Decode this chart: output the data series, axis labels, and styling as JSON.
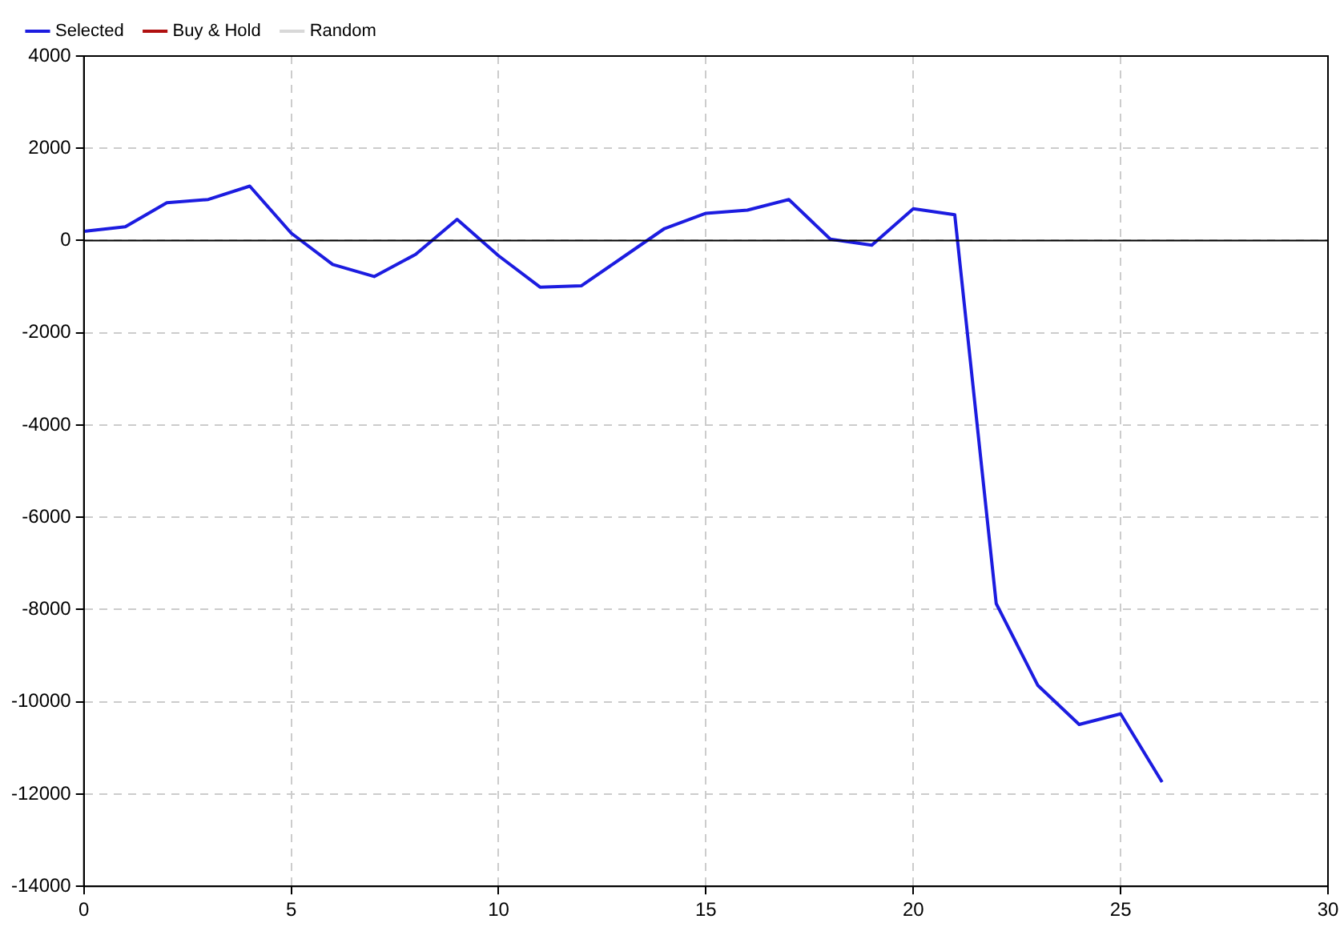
{
  "chart_data": {
    "type": "line",
    "x": [
      0,
      1,
      2,
      3,
      4,
      5,
      6,
      7,
      8,
      9,
      10,
      11,
      12,
      13,
      14,
      15,
      16,
      17,
      18,
      19,
      20,
      21,
      22,
      23,
      24,
      25,
      26
    ],
    "series": [
      {
        "name": "Selected",
        "color": "#1c1ce0",
        "values": [
          200,
          300,
          820,
          890,
          1180,
          160,
          -520,
          -780,
          -300,
          460,
          -330,
          -1010,
          -980,
          -360,
          260,
          590,
          660,
          890,
          30,
          -100,
          690,
          560,
          -7870,
          -9640,
          -10490,
          -10260,
          -11740
        ]
      },
      {
        "name": "Buy & Hold",
        "color": "#b01010",
        "values": [
          null,
          null,
          null,
          null,
          null,
          null,
          null,
          null,
          null,
          null,
          null,
          null,
          null,
          null,
          null,
          null,
          null,
          null,
          null,
          null,
          null,
          null,
          null,
          null,
          null,
          null,
          null
        ]
      },
      {
        "name": "Random",
        "color": "#d8d8d8",
        "values": [
          null,
          null,
          null,
          null,
          null,
          null,
          null,
          null,
          null,
          null,
          null,
          null,
          null,
          null,
          null,
          null,
          null,
          null,
          null,
          null,
          null,
          null,
          null,
          null,
          null,
          null,
          null
        ]
      }
    ],
    "xlim": [
      0,
      30
    ],
    "xticks": [
      0,
      5,
      10,
      15,
      20,
      25,
      30
    ],
    "ylim": [
      -14000,
      4000
    ],
    "yticks": [
      -14000,
      -12000,
      -10000,
      -8000,
      -6000,
      -4000,
      -2000,
      0,
      2000,
      4000
    ],
    "ref_lines": [
      {
        "axis": "y",
        "value": 0,
        "color": "#000000"
      }
    ],
    "grid": true,
    "legend": "top left",
    "marker": "none",
    "line_style": "solid"
  }
}
